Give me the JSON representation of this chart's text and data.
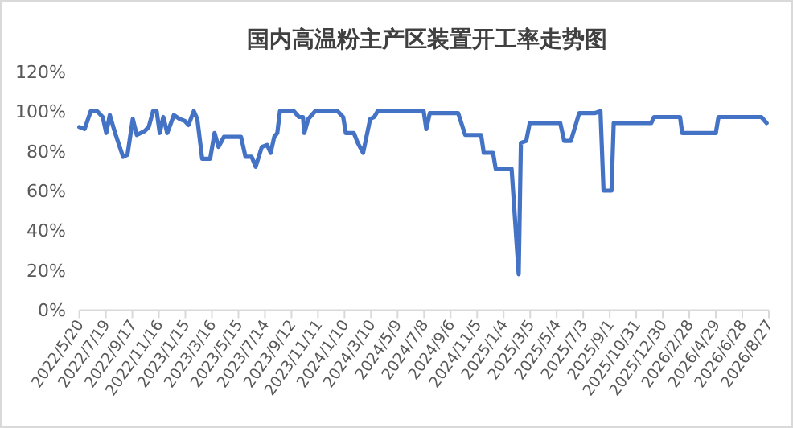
{
  "chart_data": {
    "type": "line",
    "title": "国内高温粉主产区装置开工率走势图",
    "series": [
      {
        "color": "#4472c4",
        "x": [
          "2022-05-20",
          "2022-06-01",
          "2022-06-15",
          "2022-06-29",
          "2022-07-12",
          "2022-07-20",
          "2022-07-28",
          "2022-08-09",
          "2022-08-27",
          "2022-09-06",
          "2022-09-18",
          "2022-09-27",
          "2022-10-15",
          "2022-10-24",
          "2022-11-03",
          "2022-11-11",
          "2022-11-18",
          "2022-11-26",
          "2022-12-05",
          "2022-12-20",
          "2023-01-02",
          "2023-01-14",
          "2023-01-22",
          "2023-02-03",
          "2023-02-11",
          "2023-02-22",
          "2023-03-12",
          "2023-03-22",
          "2023-03-31",
          "2023-04-12",
          "2023-05-21",
          "2023-05-31",
          "2023-06-14",
          "2023-06-23",
          "2023-07-07",
          "2023-07-19",
          "2023-07-27",
          "2023-08-04",
          "2023-08-11",
          "2023-08-17",
          "2023-09-17",
          "2023-09-29",
          "2023-10-08",
          "2023-10-11",
          "2023-10-20",
          "2023-11-05",
          "2023-12-25",
          "2024-01-07",
          "2024-01-13",
          "2024-01-31",
          "2024-02-09",
          "2024-02-21",
          "2024-03-08",
          "2024-03-17",
          "2024-03-25",
          "2024-04-12",
          "2024-07-07",
          "2024-07-13",
          "2024-07-21",
          "2024-09-23",
          "2024-10-09",
          "2024-11-14",
          "2024-11-20",
          "2024-12-11",
          "2024-12-17",
          "2025-01-22",
          "2025-02-07",
          "2025-02-12",
          "2025-02-24",
          "2025-03-04",
          "2025-05-12",
          "2025-05-21",
          "2025-06-05",
          "2025-06-24",
          "2025-07-30",
          "2025-08-11",
          "2025-08-18",
          "2025-09-05",
          "2025-09-10",
          "2025-12-04",
          "2025-12-10",
          "2026-02-07",
          "2026-02-12",
          "2026-04-29",
          "2026-05-05",
          "2026-08-10",
          "2026-08-22"
        ],
        "values": [
          92,
          91,
          100,
          100,
          97,
          89,
          98,
          89,
          77,
          78,
          96,
          88,
          90,
          92,
          100,
          100,
          89,
          97,
          89,
          98,
          96,
          95,
          93,
          100,
          96,
          76,
          76,
          89,
          82,
          87,
          87,
          77,
          77,
          72,
          82,
          83,
          79,
          87,
          89,
          100,
          100,
          97,
          97,
          89,
          96,
          100,
          100,
          97,
          89,
          89,
          84,
          79,
          96,
          97,
          100,
          100,
          100,
          91,
          99,
          99,
          88,
          88,
          79,
          79,
          71,
          71,
          18,
          84,
          85,
          94,
          94,
          85,
          85,
          99,
          99,
          100,
          60,
          60,
          94,
          94,
          97,
          97,
          89,
          89,
          97,
          97,
          94
        ]
      }
    ],
    "ylim": [
      0,
      120
    ],
    "yticks": [
      {
        "value": 0,
        "label": "0%"
      },
      {
        "value": 20,
        "label": "20%"
      },
      {
        "value": 40,
        "label": "40%"
      },
      {
        "value": 60,
        "label": "60%"
      },
      {
        "value": 80,
        "label": "80%"
      },
      {
        "value": 100,
        "label": "100%"
      },
      {
        "value": 120,
        "label": "120%"
      }
    ],
    "xlim": [
      "2022-05-20",
      "2026-08-27"
    ],
    "xticks": [
      {
        "value": "2022-05-20",
        "label": "2022/5/20"
      },
      {
        "value": "2022-07-19",
        "label": "2022/7/19"
      },
      {
        "value": "2022-09-17",
        "label": "2022/9/17"
      },
      {
        "value": "2022-11-16",
        "label": "2022/11/16"
      },
      {
        "value": "2023-01-15",
        "label": "2023/1/15"
      },
      {
        "value": "2023-03-16",
        "label": "2023/3/16"
      },
      {
        "value": "2023-05-15",
        "label": "2023/5/15"
      },
      {
        "value": "2023-07-14",
        "label": "2023/7/14"
      },
      {
        "value": "2023-09-12",
        "label": "2023/9/12"
      },
      {
        "value": "2023-11-11",
        "label": "2023/11/11"
      },
      {
        "value": "2024-01-10",
        "label": "2024/1/10"
      },
      {
        "value": "2024-03-10",
        "label": "2024/3/10"
      },
      {
        "value": "2024-05-09",
        "label": "2024/5/9"
      },
      {
        "value": "2024-07-08",
        "label": "2024/7/8"
      },
      {
        "value": "2024-09-06",
        "label": "2024/9/6"
      },
      {
        "value": "2024-11-05",
        "label": "2024/11/5"
      },
      {
        "value": "2025-01-04",
        "label": "2025/1/4"
      },
      {
        "value": "2025-03-05",
        "label": "2025/3/5"
      },
      {
        "value": "2025-05-04",
        "label": "2025/5/4"
      },
      {
        "value": "2025-07-03",
        "label": "2025/7/3"
      },
      {
        "value": "2025-09-01",
        "label": "2025/9/1"
      },
      {
        "value": "2025-10-31",
        "label": "2025/10/31"
      },
      {
        "value": "2025-12-30",
        "label": "2025/12/30"
      },
      {
        "value": "2026-02-28",
        "label": "2026/2/28"
      },
      {
        "value": "2026-04-29",
        "label": "2026/4/29"
      },
      {
        "value": "2026-06-28",
        "label": "2026/6/28"
      },
      {
        "value": "2026-08-27",
        "label": "2026/8/27"
      }
    ],
    "grid": false,
    "marker": "none",
    "line_style": "solid"
  }
}
